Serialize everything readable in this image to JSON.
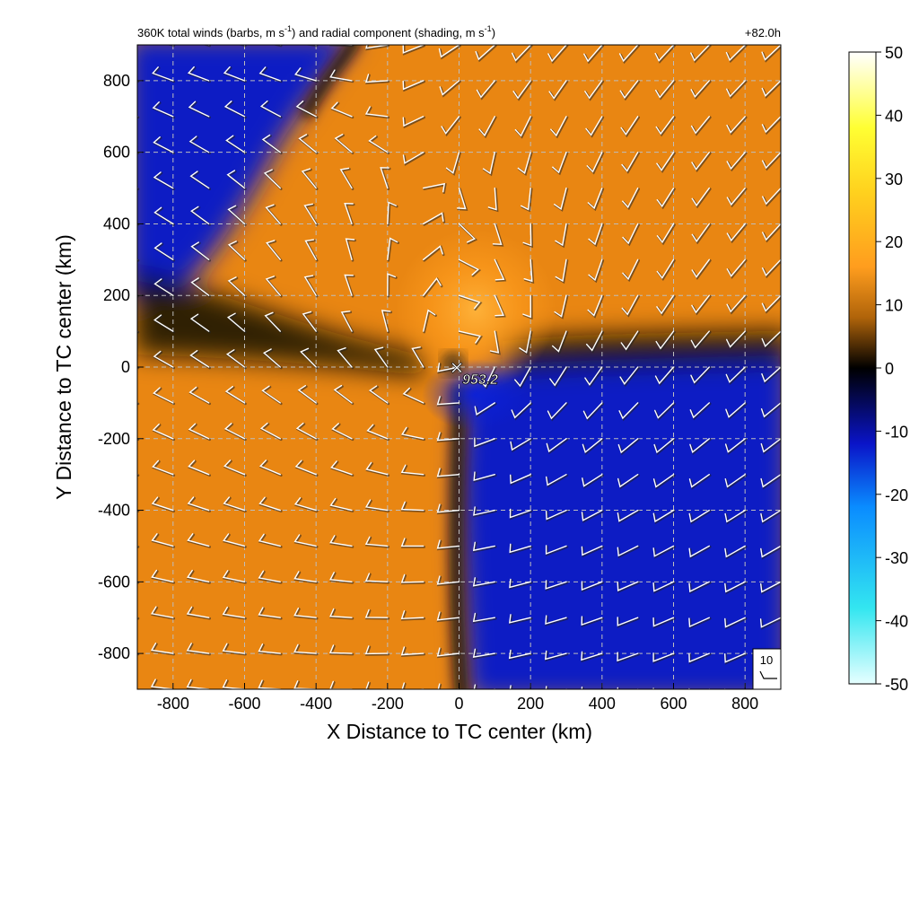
{
  "header": {
    "title_main": "360K total winds (barbs, m s",
    "title_sup1": "-1",
    "title_mid": ") and radial component (shading, m s",
    "title_sup2": "-1",
    "title_end": ")",
    "forecast_hour": "+82.0h"
  },
  "center_marker": {
    "symbol": "✕",
    "pressure_label": "953.2"
  },
  "reference_barb": {
    "label": "10"
  },
  "chart_data": {
    "type": "heatmap",
    "title": "360K total winds (barbs, m s-1) and radial component (shading, m s-1)",
    "xlabel": "X Distance to TC center (km)",
    "ylabel": "Y Distance to TC center (km)",
    "xlim": [
      -900,
      900
    ],
    "ylim": [
      -900,
      900
    ],
    "x_ticks": [
      -800,
      -600,
      -400,
      -200,
      0,
      200,
      400,
      600,
      800
    ],
    "y_ticks": [
      800,
      600,
      400,
      200,
      0,
      -200,
      -400,
      -600,
      -800
    ],
    "x_tick_labels": [
      "-800",
      "-600",
      "-400",
      "-200",
      "0",
      "200",
      "400",
      "600",
      "800"
    ],
    "y_tick_labels": [
      "800",
      "600",
      "400",
      "200",
      "0",
      "-200",
      "-400",
      "-600",
      "-800"
    ],
    "grid": true,
    "colorbar": {
      "range": [
        -50,
        50
      ],
      "ticks": [
        50,
        40,
        30,
        20,
        10,
        0,
        -10,
        -20,
        -30,
        -40,
        -50
      ],
      "tick_labels": [
        "50",
        "40",
        "30",
        "20",
        "10",
        "0",
        "-10",
        "-20",
        "-30",
        "-40",
        "-50"
      ],
      "colors": [
        "#e6ffff",
        "#33e6f0",
        "#0a8cff",
        "#0a14c8",
        "#000000",
        "#e6820a",
        "#ff9d1e",
        "#ffd21e",
        "#ffff33",
        "#ffffff"
      ]
    },
    "shading_regions": [
      {
        "region": "north-west",
        "radial_wind": -12
      },
      {
        "region": "north-east",
        "radial_wind": 14
      },
      {
        "region": "south-west",
        "radial_wind": 16
      },
      {
        "region": "south-east",
        "radial_wind": -12
      },
      {
        "region": "north-of-center",
        "radial_wind": 22
      }
    ],
    "center": {
      "x": 0,
      "y": 0,
      "min_pressure": 953.2
    },
    "reference_barb_speed": 10
  }
}
